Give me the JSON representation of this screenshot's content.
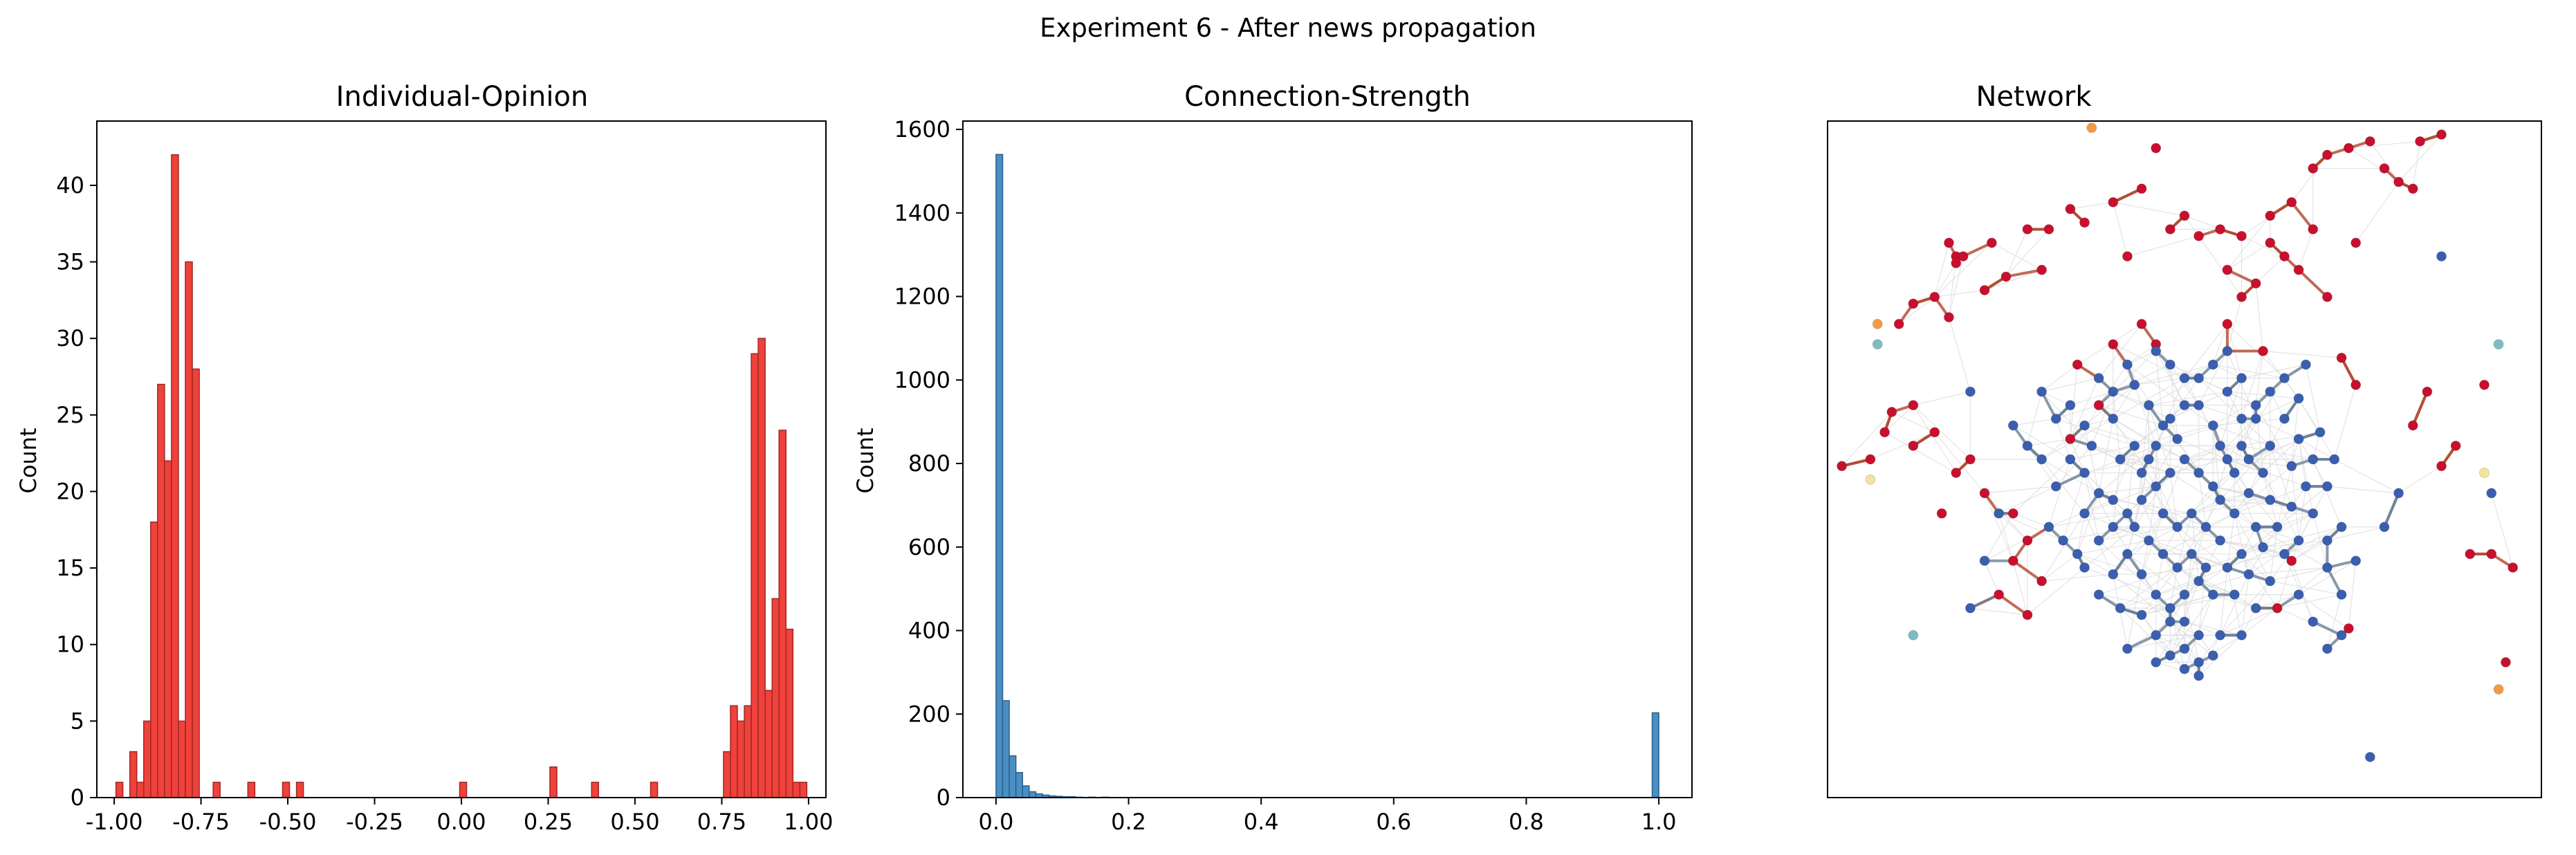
{
  "figure": {
    "suptitle": "Experiment 6 - After news propagation"
  },
  "colors": {
    "opinion_bar": "#f0413a",
    "opinion_edge": "#9c2a26",
    "strength_bar": "#4a8fc4",
    "strength_edge": "#2c5f88",
    "edge_gray": "#d9d9d9",
    "edge_dark": "#6c8196"
  },
  "chart_data": [
    {
      "type": "bar",
      "title": "Individual-Opinion",
      "xlabel": "",
      "ylabel": "Count",
      "xlim": [
        -1.05,
        1.05
      ],
      "ylim": [
        0,
        44.2
      ],
      "bin_width": 0.02,
      "xticks": [
        "-1.00",
        "-0.75",
        "-0.50",
        "-0.25",
        "0.00",
        "0.25",
        "0.50",
        "0.75",
        "1.00"
      ],
      "xtick_values": [
        -1.0,
        -0.75,
        -0.5,
        -0.25,
        0.0,
        0.25,
        0.5,
        0.75,
        1.0
      ],
      "yticks": [
        "0",
        "5",
        "10",
        "15",
        "20",
        "25",
        "30",
        "35",
        "40"
      ],
      "ytick_values": [
        0,
        5,
        10,
        15,
        20,
        25,
        30,
        35,
        40
      ],
      "bins": [
        {
          "x": -0.985,
          "value": 1
        },
        {
          "x": -0.945,
          "value": 3
        },
        {
          "x": -0.925,
          "value": 1
        },
        {
          "x": -0.905,
          "value": 5
        },
        {
          "x": -0.885,
          "value": 18
        },
        {
          "x": -0.865,
          "value": 27
        },
        {
          "x": -0.845,
          "value": 22
        },
        {
          "x": -0.825,
          "value": 42
        },
        {
          "x": -0.805,
          "value": 5
        },
        {
          "x": -0.785,
          "value": 35
        },
        {
          "x": -0.765,
          "value": 28
        },
        {
          "x": -0.705,
          "value": 1
        },
        {
          "x": -0.605,
          "value": 1
        },
        {
          "x": -0.505,
          "value": 1
        },
        {
          "x": -0.465,
          "value": 1
        },
        {
          "x": 0.005,
          "value": 1
        },
        {
          "x": 0.265,
          "value": 2
        },
        {
          "x": 0.385,
          "value": 1
        },
        {
          "x": 0.555,
          "value": 1
        },
        {
          "x": 0.765,
          "value": 3
        },
        {
          "x": 0.785,
          "value": 6
        },
        {
          "x": 0.805,
          "value": 5
        },
        {
          "x": 0.825,
          "value": 6
        },
        {
          "x": 0.845,
          "value": 29
        },
        {
          "x": 0.865,
          "value": 30
        },
        {
          "x": 0.885,
          "value": 7
        },
        {
          "x": 0.905,
          "value": 13
        },
        {
          "x": 0.925,
          "value": 24
        },
        {
          "x": 0.945,
          "value": 11
        },
        {
          "x": 0.965,
          "value": 1
        },
        {
          "x": 0.985,
          "value": 1
        }
      ],
      "grid": false
    },
    {
      "type": "bar",
      "title": "Connection-Strength",
      "xlabel": "",
      "ylabel": "Count",
      "xlim": [
        -0.05,
        1.05
      ],
      "ylim": [
        0,
        1620
      ],
      "bin_width": 0.01,
      "xticks": [
        "0.0",
        "0.2",
        "0.4",
        "0.6",
        "0.8",
        "1.0"
      ],
      "xtick_values": [
        0.0,
        0.2,
        0.4,
        0.6,
        0.8,
        1.0
      ],
      "yticks": [
        "0",
        "200",
        "400",
        "600",
        "800",
        "1000",
        "1200",
        "1400",
        "1600"
      ],
      "ytick_values": [
        0,
        200,
        400,
        600,
        800,
        1000,
        1200,
        1400,
        1600
      ],
      "bins": [
        {
          "x": 0.005,
          "value": 1540
        },
        {
          "x": 0.015,
          "value": 232
        },
        {
          "x": 0.025,
          "value": 100
        },
        {
          "x": 0.035,
          "value": 60
        },
        {
          "x": 0.045,
          "value": 28
        },
        {
          "x": 0.055,
          "value": 14
        },
        {
          "x": 0.065,
          "value": 9
        },
        {
          "x": 0.075,
          "value": 6
        },
        {
          "x": 0.085,
          "value": 4
        },
        {
          "x": 0.095,
          "value": 3
        },
        {
          "x": 0.105,
          "value": 2
        },
        {
          "x": 0.115,
          "value": 2
        },
        {
          "x": 0.125,
          "value": 1
        },
        {
          "x": 0.145,
          "value": 1
        },
        {
          "x": 0.165,
          "value": 1
        },
        {
          "x": 0.995,
          "value": 203
        }
      ],
      "grid": false
    },
    {
      "type": "scatter",
      "title": "Network",
      "xlabel": "",
      "ylabel": "",
      "xlim": [
        0,
        1
      ],
      "ylim": [
        0,
        1
      ],
      "axes_ticks": false,
      "nodes": {
        "red": [
          [
            0.18,
            0.8
          ],
          [
            0.23,
            0.82
          ],
          [
            0.28,
            0.84
          ],
          [
            0.34,
            0.87
          ],
          [
            0.36,
            0.85
          ],
          [
            0.4,
            0.88
          ],
          [
            0.44,
            0.9
          ],
          [
            0.5,
            0.86
          ],
          [
            0.55,
            0.84
          ],
          [
            0.58,
            0.83
          ],
          [
            0.62,
            0.86
          ],
          [
            0.65,
            0.88
          ],
          [
            0.68,
            0.93
          ],
          [
            0.7,
            0.95
          ],
          [
            0.73,
            0.96
          ],
          [
            0.76,
            0.97
          ],
          [
            0.78,
            0.93
          ],
          [
            0.8,
            0.91
          ],
          [
            0.82,
            0.9
          ],
          [
            0.64,
            0.8
          ],
          [
            0.66,
            0.78
          ],
          [
            0.6,
            0.76
          ],
          [
            0.7,
            0.74
          ],
          [
            0.74,
            0.82
          ],
          [
            0.68,
            0.84
          ],
          [
            0.1,
            0.7
          ],
          [
            0.12,
            0.73
          ],
          [
            0.15,
            0.74
          ],
          [
            0.17,
            0.71
          ],
          [
            0.22,
            0.75
          ],
          [
            0.25,
            0.77
          ],
          [
            0.3,
            0.78
          ],
          [
            0.08,
            0.54
          ],
          [
            0.06,
            0.5
          ],
          [
            0.12,
            0.52
          ],
          [
            0.15,
            0.54
          ],
          [
            0.18,
            0.48
          ],
          [
            0.22,
            0.45
          ],
          [
            0.26,
            0.42
          ],
          [
            0.28,
            0.38
          ],
          [
            0.3,
            0.32
          ],
          [
            0.28,
            0.27
          ],
          [
            0.24,
            0.3
          ],
          [
            0.26,
            0.35
          ],
          [
            0.48,
            0.84
          ],
          [
            0.52,
            0.83
          ],
          [
            0.56,
            0.78
          ],
          [
            0.42,
            0.8
          ],
          [
            0.2,
            0.5
          ],
          [
            0.16,
            0.42
          ],
          [
            0.82,
            0.55
          ],
          [
            0.86,
            0.49
          ],
          [
            0.88,
            0.52
          ],
          [
            0.92,
            0.61
          ],
          [
            0.96,
            0.34
          ],
          [
            0.93,
            0.36
          ],
          [
            0.9,
            0.36
          ],
          [
            0.95,
            0.2
          ],
          [
            0.73,
            0.25
          ],
          [
            0.63,
            0.28
          ],
          [
            0.65,
            0.35
          ],
          [
            0.74,
            0.61
          ],
          [
            0.84,
            0.6
          ],
          [
            0.02,
            0.49
          ],
          [
            0.19,
            0.8
          ],
          [
            0.17,
            0.82
          ],
          [
            0.62,
            0.82
          ],
          [
            0.58,
            0.74
          ],
          [
            0.56,
            0.7
          ],
          [
            0.72,
            0.65
          ],
          [
            0.46,
            0.67
          ],
          [
            0.44,
            0.7
          ],
          [
            0.4,
            0.67
          ],
          [
            0.35,
            0.64
          ],
          [
            0.38,
            0.58
          ],
          [
            0.34,
            0.53
          ],
          [
            0.12,
            0.58
          ],
          [
            0.09,
            0.57
          ],
          [
            0.83,
            0.97
          ],
          [
            0.86,
            0.98
          ],
          [
            0.46,
            0.96
          ],
          [
            0.18,
            0.79
          ],
          [
            0.31,
            0.84
          ],
          [
            0.61,
            0.66
          ]
        ],
        "blue": [
          [
            0.43,
            0.61
          ],
          [
            0.45,
            0.58
          ],
          [
            0.47,
            0.55
          ],
          [
            0.49,
            0.53
          ],
          [
            0.5,
            0.5
          ],
          [
            0.52,
            0.48
          ],
          [
            0.54,
            0.46
          ],
          [
            0.48,
            0.48
          ],
          [
            0.46,
            0.46
          ],
          [
            0.44,
            0.44
          ],
          [
            0.42,
            0.42
          ],
          [
            0.4,
            0.4
          ],
          [
            0.38,
            0.45
          ],
          [
            0.36,
            0.48
          ],
          [
            0.34,
            0.5
          ],
          [
            0.32,
            0.46
          ],
          [
            0.3,
            0.5
          ],
          [
            0.28,
            0.52
          ],
          [
            0.26,
            0.55
          ],
          [
            0.42,
            0.36
          ],
          [
            0.44,
            0.33
          ],
          [
            0.46,
            0.3
          ],
          [
            0.48,
            0.28
          ],
          [
            0.5,
            0.26
          ],
          [
            0.52,
            0.24
          ],
          [
            0.5,
            0.22
          ],
          [
            0.48,
            0.21
          ],
          [
            0.52,
            0.2
          ],
          [
            0.54,
            0.21
          ],
          [
            0.55,
            0.24
          ],
          [
            0.57,
            0.3
          ],
          [
            0.59,
            0.33
          ],
          [
            0.61,
            0.37
          ],
          [
            0.63,
            0.4
          ],
          [
            0.65,
            0.43
          ],
          [
            0.67,
            0.46
          ],
          [
            0.68,
            0.5
          ],
          [
            0.66,
            0.53
          ],
          [
            0.64,
            0.56
          ],
          [
            0.6,
            0.56
          ],
          [
            0.58,
            0.52
          ],
          [
            0.56,
            0.5
          ],
          [
            0.54,
            0.55
          ],
          [
            0.52,
            0.58
          ],
          [
            0.5,
            0.62
          ],
          [
            0.48,
            0.64
          ],
          [
            0.46,
            0.66
          ],
          [
            0.56,
            0.6
          ],
          [
            0.58,
            0.62
          ],
          [
            0.6,
            0.58
          ],
          [
            0.62,
            0.52
          ],
          [
            0.7,
            0.46
          ],
          [
            0.72,
            0.4
          ],
          [
            0.7,
            0.34
          ],
          [
            0.66,
            0.3
          ],
          [
            0.7,
            0.22
          ],
          [
            0.68,
            0.26
          ],
          [
            0.72,
            0.24
          ],
          [
            0.38,
            0.3
          ],
          [
            0.36,
            0.34
          ],
          [
            0.4,
            0.33
          ],
          [
            0.41,
            0.5
          ],
          [
            0.43,
            0.52
          ],
          [
            0.45,
            0.5
          ],
          [
            0.47,
            0.42
          ],
          [
            0.49,
            0.4
          ],
          [
            0.51,
            0.42
          ],
          [
            0.53,
            0.4
          ],
          [
            0.55,
            0.38
          ],
          [
            0.57,
            0.42
          ],
          [
            0.59,
            0.45
          ],
          [
            0.61,
            0.48
          ],
          [
            0.36,
            0.55
          ],
          [
            0.34,
            0.58
          ],
          [
            0.32,
            0.56
          ],
          [
            0.3,
            0.6
          ],
          [
            0.4,
            0.56
          ],
          [
            0.38,
            0.62
          ],
          [
            0.44,
            0.27
          ],
          [
            0.46,
            0.24
          ],
          [
            0.42,
            0.22
          ],
          [
            0.58,
            0.24
          ],
          [
            0.6,
            0.28
          ],
          [
            0.62,
            0.32
          ],
          [
            0.53,
            0.34
          ],
          [
            0.51,
            0.36
          ],
          [
            0.49,
            0.34
          ],
          [
            0.47,
            0.36
          ],
          [
            0.45,
            0.38
          ],
          [
            0.43,
            0.4
          ],
          [
            0.5,
            0.58
          ],
          [
            0.52,
            0.62
          ],
          [
            0.54,
            0.64
          ],
          [
            0.56,
            0.66
          ],
          [
            0.42,
            0.64
          ],
          [
            0.4,
            0.6
          ],
          [
            0.64,
            0.62
          ],
          [
            0.66,
            0.59
          ],
          [
            0.62,
            0.44
          ],
          [
            0.6,
            0.4
          ],
          [
            0.64,
            0.36
          ],
          [
            0.66,
            0.38
          ],
          [
            0.54,
            0.3
          ],
          [
            0.56,
            0.34
          ],
          [
            0.48,
            0.26
          ],
          [
            0.5,
            0.3
          ],
          [
            0.52,
            0.32
          ],
          [
            0.44,
            0.48
          ],
          [
            0.46,
            0.52
          ],
          [
            0.48,
            0.56
          ],
          [
            0.4,
            0.44
          ],
          [
            0.38,
            0.38
          ],
          [
            0.36,
            0.42
          ],
          [
            0.58,
            0.56
          ],
          [
            0.62,
            0.6
          ],
          [
            0.68,
            0.42
          ],
          [
            0.7,
            0.38
          ],
          [
            0.72,
            0.3
          ],
          [
            0.74,
            0.35
          ],
          [
            0.71,
            0.5
          ],
          [
            0.69,
            0.54
          ],
          [
            0.24,
            0.42
          ],
          [
            0.22,
            0.35
          ],
          [
            0.2,
            0.28
          ],
          [
            0.78,
            0.4
          ],
          [
            0.8,
            0.45
          ],
          [
            0.31,
            0.4
          ],
          [
            0.33,
            0.38
          ],
          [
            0.35,
            0.36
          ],
          [
            0.37,
            0.52
          ],
          [
            0.55,
            0.44
          ],
          [
            0.57,
            0.48
          ],
          [
            0.59,
            0.5
          ],
          [
            0.86,
            0.8
          ],
          [
            0.93,
            0.45
          ],
          [
            0.76,
            0.06
          ],
          [
            0.2,
            0.6
          ],
          [
            0.46,
            0.2
          ],
          [
            0.5,
            0.19
          ],
          [
            0.52,
            0.18
          ],
          [
            0.55,
            0.52
          ],
          [
            0.58,
            0.36
          ],
          [
            0.41,
            0.28
          ],
          [
            0.65,
            0.49
          ],
          [
            0.67,
            0.64
          ]
        ],
        "teal": [
          [
            0.07,
            0.67
          ],
          [
            0.94,
            0.67
          ],
          [
            0.12,
            0.24
          ]
        ],
        "orange": [
          [
            0.37,
            0.99
          ],
          [
            0.07,
            0.7
          ],
          [
            0.94,
            0.16
          ]
        ],
        "yellow": [
          [
            0.06,
            0.47
          ],
          [
            0.92,
            0.48
          ]
        ]
      },
      "grid": false
    }
  ]
}
